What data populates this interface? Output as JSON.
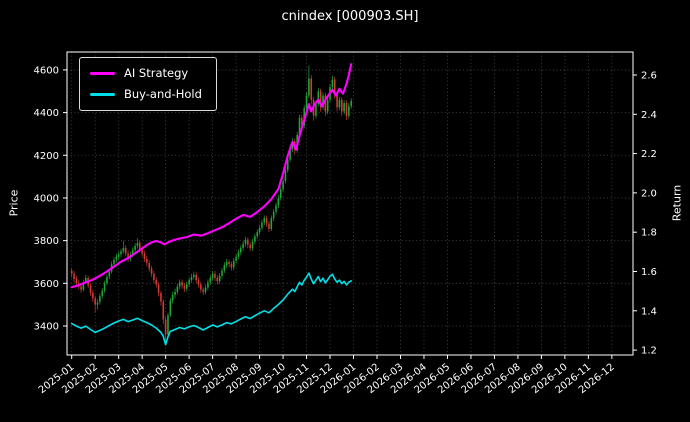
{
  "chart_data": {
    "type": "candlestick+line",
    "title": "cnindex [000903.SH]",
    "ylabel_left": "Price",
    "ylabel_right": "Return",
    "background": "#000000",
    "grid": true,
    "legend_position": "upper-left",
    "x_ticks": [
      "2025-01",
      "2025-02",
      "2025-03",
      "2025-04",
      "2025-05",
      "2025-06",
      "2025-07",
      "2025-08",
      "2025-09",
      "2025-10",
      "2025-11",
      "2025-12",
      "2026-01",
      "2026-02",
      "2026-03",
      "2026-04",
      "2026-05",
      "2026-06",
      "2026-07",
      "2026-08",
      "2026-09",
      "2026-10",
      "2026-11",
      "2026-12"
    ],
    "x_domain_months": [
      -0.2,
      23.9
    ],
    "price_axis": {
      "range": [
        3264,
        4684
      ],
      "ticks": [
        3400,
        3600,
        3800,
        4000,
        4200,
        4400,
        4600
      ]
    },
    "return_axis": {
      "range": [
        1.175,
        2.717
      ],
      "ticks": [
        1.2,
        1.4,
        1.6,
        1.8,
        2.0,
        2.2,
        2.4,
        2.6
      ]
    },
    "candles": {
      "t0": 0,
      "dt": 0.1,
      "up_color": "#21a637",
      "down_color": "#d13b32",
      "ohlc": [
        [
          3660,
          3672,
          3628,
          3645
        ],
        [
          3645,
          3658,
          3605,
          3620
        ],
        [
          3622,
          3635,
          3588,
          3600
        ],
        [
          3600,
          3618,
          3572,
          3585
        ],
        [
          3586,
          3600,
          3556,
          3570
        ],
        [
          3570,
          3618,
          3562,
          3605
        ],
        [
          3606,
          3640,
          3596,
          3625
        ],
        [
          3624,
          3636,
          3578,
          3590
        ],
        [
          3590,
          3600,
          3542,
          3555
        ],
        [
          3556,
          3570,
          3512,
          3530
        ],
        [
          3530,
          3542,
          3462,
          3500
        ],
        [
          3500,
          3525,
          3478,
          3510
        ],
        [
          3512,
          3552,
          3500,
          3540
        ],
        [
          3540,
          3578,
          3528,
          3565
        ],
        [
          3566,
          3612,
          3555,
          3600
        ],
        [
          3600,
          3642,
          3590,
          3630
        ],
        [
          3632,
          3668,
          3620,
          3655
        ],
        [
          3655,
          3702,
          3645,
          3690
        ],
        [
          3690,
          3722,
          3676,
          3710
        ],
        [
          3712,
          3738,
          3698,
          3725
        ],
        [
          3725,
          3748,
          3710,
          3735
        ],
        [
          3736,
          3762,
          3722,
          3750
        ],
        [
          3750,
          3800,
          3740,
          3765
        ],
        [
          3766,
          3778,
          3726,
          3740
        ],
        [
          3740,
          3752,
          3700,
          3715
        ],
        [
          3715,
          3748,
          3702,
          3735
        ],
        [
          3735,
          3768,
          3722,
          3755
        ],
        [
          3756,
          3788,
          3742,
          3775
        ],
        [
          3775,
          3812,
          3762,
          3790
        ],
        [
          3790,
          3800,
          3745,
          3760
        ],
        [
          3760,
          3772,
          3725,
          3740
        ],
        [
          3740,
          3752,
          3700,
          3715
        ],
        [
          3715,
          3728,
          3680,
          3695
        ],
        [
          3695,
          3708,
          3655,
          3670
        ],
        [
          3670,
          3682,
          3630,
          3645
        ],
        [
          3645,
          3658,
          3600,
          3615
        ],
        [
          3615,
          3628,
          3580,
          3595
        ],
        [
          3595,
          3605,
          3538,
          3555
        ],
        [
          3555,
          3565,
          3495,
          3515
        ],
        [
          3515,
          3525,
          3408,
          3430
        ],
        [
          3430,
          3445,
          3328,
          3360
        ],
        [
          3360,
          3462,
          3352,
          3450
        ],
        [
          3450,
          3532,
          3442,
          3520
        ],
        [
          3520,
          3560,
          3505,
          3545
        ],
        [
          3545,
          3575,
          3530,
          3560
        ],
        [
          3560,
          3598,
          3548,
          3585
        ],
        [
          3585,
          3618,
          3572,
          3605
        ],
        [
          3606,
          3618,
          3575,
          3590
        ],
        [
          3590,
          3602,
          3560,
          3575
        ],
        [
          3575,
          3608,
          3562,
          3595
        ],
        [
          3595,
          3628,
          3582,
          3615
        ],
        [
          3615,
          3645,
          3602,
          3630
        ],
        [
          3630,
          3655,
          3618,
          3640
        ],
        [
          3640,
          3652,
          3600,
          3615
        ],
        [
          3615,
          3628,
          3580,
          3595
        ],
        [
          3595,
          3608,
          3555,
          3570
        ],
        [
          3570,
          3582,
          3545,
          3560
        ],
        [
          3560,
          3595,
          3548,
          3580
        ],
        [
          3580,
          3618,
          3568,
          3605
        ],
        [
          3605,
          3640,
          3592,
          3625
        ],
        [
          3625,
          3658,
          3612,
          3645
        ],
        [
          3645,
          3658,
          3610,
          3625
        ],
        [
          3625,
          3638,
          3595,
          3610
        ],
        [
          3610,
          3648,
          3598,
          3635
        ],
        [
          3635,
          3672,
          3622,
          3660
        ],
        [
          3660,
          3698,
          3648,
          3685
        ],
        [
          3685,
          3715,
          3672,
          3700
        ],
        [
          3700,
          3712,
          3675,
          3690
        ],
        [
          3690,
          3702,
          3660,
          3675
        ],
        [
          3675,
          3718,
          3662,
          3705
        ],
        [
          3705,
          3738,
          3692,
          3725
        ],
        [
          3725,
          3758,
          3712,
          3745
        ],
        [
          3745,
          3778,
          3732,
          3765
        ],
        [
          3765,
          3798,
          3752,
          3785
        ],
        [
          3785,
          3818,
          3772,
          3805
        ],
        [
          3805,
          3815,
          3765,
          3780
        ],
        [
          3780,
          3792,
          3750,
          3765
        ],
        [
          3765,
          3808,
          3752,
          3795
        ],
        [
          3795,
          3832,
          3782,
          3820
        ],
        [
          3820,
          3852,
          3808,
          3840
        ],
        [
          3840,
          3872,
          3828,
          3860
        ],
        [
          3860,
          3898,
          3848,
          3885
        ],
        [
          3885,
          3918,
          3872,
          3905
        ],
        [
          3905,
          3918,
          3865,
          3880
        ],
        [
          3880,
          3892,
          3840,
          3855
        ],
        [
          3855,
          3918,
          3845,
          3905
        ],
        [
          3905,
          3948,
          3892,
          3935
        ],
        [
          3935,
          3978,
          3922,
          3965
        ],
        [
          3965,
          4015,
          3952,
          4000
        ],
        [
          4000,
          4055,
          3988,
          4040
        ],
        [
          4040,
          4095,
          4028,
          4080
        ],
        [
          4080,
          4145,
          4068,
          4130
        ],
        [
          4130,
          4195,
          4118,
          4180
        ],
        [
          4180,
          4245,
          4168,
          4230
        ],
        [
          4230,
          4280,
          4215,
          4265
        ],
        [
          4265,
          4278,
          4205,
          4225
        ],
        [
          4225,
          4310,
          4212,
          4295
        ],
        [
          4295,
          4390,
          4282,
          4375
        ],
        [
          4375,
          4390,
          4318,
          4340
        ],
        [
          4340,
          4435,
          4328,
          4420
        ],
        [
          4420,
          4495,
          4408,
          4480
        ],
        [
          4480,
          4620,
          4468,
          4560
        ],
        [
          4560,
          4575,
          4438,
          4460
        ],
        [
          4460,
          4472,
          4362,
          4385
        ],
        [
          4385,
          4455,
          4372,
          4440
        ],
        [
          4440,
          4515,
          4428,
          4500
        ],
        [
          4500,
          4512,
          4405,
          4425
        ],
        [
          4425,
          4495,
          4412,
          4480
        ],
        [
          4480,
          4492,
          4385,
          4405
        ],
        [
          4405,
          4475,
          4392,
          4460
        ],
        [
          4460,
          4535,
          4448,
          4520
        ],
        [
          4520,
          4572,
          4508,
          4555
        ],
        [
          4555,
          4568,
          4465,
          4485
        ],
        [
          4485,
          4498,
          4405,
          4425
        ],
        [
          4425,
          4475,
          4412,
          4460
        ],
        [
          4460,
          4472,
          4385,
          4405
        ],
        [
          4405,
          4458,
          4392,
          4445
        ],
        [
          4445,
          4458,
          4365,
          4385
        ],
        [
          4385,
          4445,
          4372,
          4430
        ],
        [
          4430,
          4468,
          4418,
          4455
        ]
      ]
    },
    "series": [
      {
        "name": "AI Strategy",
        "color": "#ff00ff",
        "axis": "return",
        "width": 2.1,
        "points": [
          [
            0,
            1.52
          ],
          [
            0.3,
            1.53
          ],
          [
            0.6,
            1.545
          ],
          [
            0.9,
            1.558
          ],
          [
            1.2,
            1.578
          ],
          [
            1.5,
            1.6
          ],
          [
            1.8,
            1.625
          ],
          [
            2.1,
            1.65
          ],
          [
            2.4,
            1.668
          ],
          [
            2.7,
            1.692
          ],
          [
            3.0,
            1.718
          ],
          [
            3.2,
            1.735
          ],
          [
            3.4,
            1.748
          ],
          [
            3.6,
            1.755
          ],
          [
            3.8,
            1.748
          ],
          [
            3.95,
            1.738
          ],
          [
            4.1,
            1.748
          ],
          [
            4.3,
            1.758
          ],
          [
            4.6,
            1.768
          ],
          [
            4.9,
            1.775
          ],
          [
            5.2,
            1.788
          ],
          [
            5.5,
            1.782
          ],
          [
            5.8,
            1.795
          ],
          [
            6.1,
            1.81
          ],
          [
            6.4,
            1.825
          ],
          [
            6.7,
            1.845
          ],
          [
            7.0,
            1.868
          ],
          [
            7.3,
            1.888
          ],
          [
            7.6,
            1.878
          ],
          [
            7.9,
            1.902
          ],
          [
            8.2,
            1.932
          ],
          [
            8.5,
            1.968
          ],
          [
            8.8,
            2.02
          ],
          [
            9.0,
            2.1
          ],
          [
            9.2,
            2.19
          ],
          [
            9.4,
            2.26
          ],
          [
            9.55,
            2.22
          ],
          [
            9.7,
            2.29
          ],
          [
            9.85,
            2.35
          ],
          [
            10.0,
            2.41
          ],
          [
            10.1,
            2.452
          ],
          [
            10.2,
            2.415
          ],
          [
            10.35,
            2.452
          ],
          [
            10.5,
            2.475
          ],
          [
            10.65,
            2.44
          ],
          [
            10.8,
            2.475
          ],
          [
            10.95,
            2.5
          ],
          [
            11.1,
            2.525
          ],
          [
            11.25,
            2.495
          ],
          [
            11.4,
            2.53
          ],
          [
            11.55,
            2.505
          ],
          [
            11.7,
            2.555
          ],
          [
            11.8,
            2.6
          ],
          [
            11.9,
            2.655
          ]
        ]
      },
      {
        "name": "Buy-and-Hold",
        "color": "#00e0e8",
        "axis": "return",
        "width": 1.6,
        "points": [
          [
            0,
            1.335
          ],
          [
            0.2,
            1.322
          ],
          [
            0.4,
            1.312
          ],
          [
            0.6,
            1.322
          ],
          [
            0.8,
            1.305
          ],
          [
            1.0,
            1.29
          ],
          [
            1.2,
            1.3
          ],
          [
            1.4,
            1.312
          ],
          [
            1.6,
            1.325
          ],
          [
            1.8,
            1.338
          ],
          [
            2.0,
            1.348
          ],
          [
            2.2,
            1.356
          ],
          [
            2.4,
            1.345
          ],
          [
            2.6,
            1.353
          ],
          [
            2.8,
            1.362
          ],
          [
            3.0,
            1.35
          ],
          [
            3.2,
            1.34
          ],
          [
            3.4,
            1.328
          ],
          [
            3.6,
            1.312
          ],
          [
            3.8,
            1.29
          ],
          [
            3.9,
            1.27
          ],
          [
            4.0,
            1.228
          ],
          [
            4.1,
            1.268
          ],
          [
            4.2,
            1.295
          ],
          [
            4.4,
            1.305
          ],
          [
            4.6,
            1.315
          ],
          [
            4.8,
            1.308
          ],
          [
            5.0,
            1.318
          ],
          [
            5.2,
            1.325
          ],
          [
            5.4,
            1.315
          ],
          [
            5.6,
            1.302
          ],
          [
            5.8,
            1.315
          ],
          [
            6.0,
            1.328
          ],
          [
            6.2,
            1.318
          ],
          [
            6.4,
            1.328
          ],
          [
            6.6,
            1.34
          ],
          [
            6.8,
            1.334
          ],
          [
            7.0,
            1.346
          ],
          [
            7.2,
            1.358
          ],
          [
            7.4,
            1.37
          ],
          [
            7.6,
            1.36
          ],
          [
            7.8,
            1.375
          ],
          [
            8.0,
            1.388
          ],
          [
            8.2,
            1.4
          ],
          [
            8.4,
            1.39
          ],
          [
            8.6,
            1.412
          ],
          [
            8.8,
            1.432
          ],
          [
            9.0,
            1.455
          ],
          [
            9.2,
            1.485
          ],
          [
            9.4,
            1.51
          ],
          [
            9.5,
            1.498
          ],
          [
            9.6,
            1.522
          ],
          [
            9.7,
            1.545
          ],
          [
            9.8,
            1.532
          ],
          [
            9.9,
            1.555
          ],
          [
            10.0,
            1.572
          ],
          [
            10.1,
            1.592
          ],
          [
            10.2,
            1.562
          ],
          [
            10.3,
            1.538
          ],
          [
            10.4,
            1.556
          ],
          [
            10.5,
            1.574
          ],
          [
            10.6,
            1.548
          ],
          [
            10.7,
            1.566
          ],
          [
            10.8,
            1.542
          ],
          [
            10.9,
            1.558
          ],
          [
            11.0,
            1.576
          ],
          [
            11.1,
            1.586
          ],
          [
            11.2,
            1.562
          ],
          [
            11.3,
            1.545
          ],
          [
            11.4,
            1.556
          ],
          [
            11.5,
            1.538
          ],
          [
            11.6,
            1.55
          ],
          [
            11.7,
            1.532
          ],
          [
            11.8,
            1.546
          ],
          [
            11.9,
            1.552
          ]
        ]
      }
    ]
  }
}
